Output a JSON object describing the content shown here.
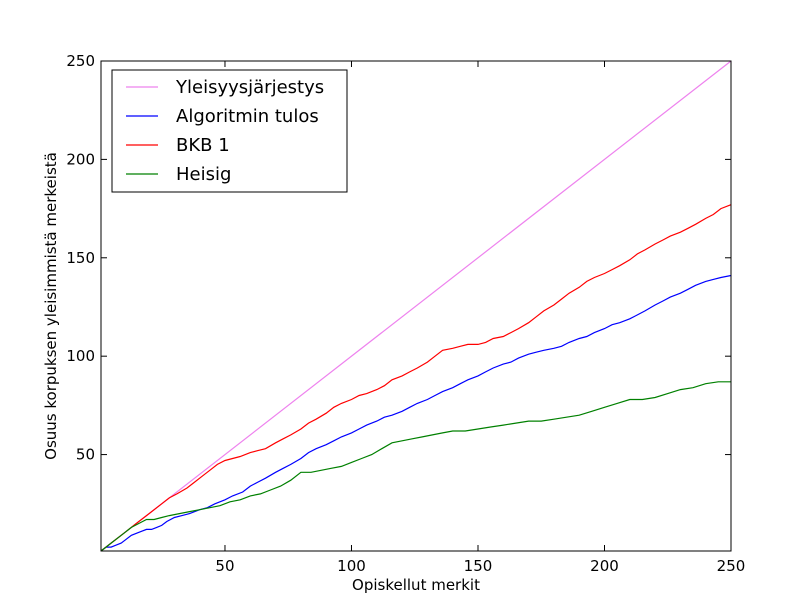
{
  "chart_data": {
    "type": "line",
    "title": "",
    "xlabel": "Opiskellut merkit",
    "ylabel": "Osuus korpuksen yleisimmistä merkeistä",
    "xlim": [
      1,
      250
    ],
    "ylim": [
      1,
      250
    ],
    "xticks": [
      50,
      100,
      150,
      200,
      250
    ],
    "yticks": [
      50,
      100,
      150,
      200,
      250
    ],
    "grid": false,
    "legend": "top-left",
    "series": [
      {
        "name": "Yleisyysjärjestys",
        "color": "#ee82ee",
        "points": [
          [
            1,
            1
          ],
          [
            250,
            250
          ]
        ]
      },
      {
        "name": "Algoritmin tulos",
        "color": "#0000ff",
        "points": [
          [
            1,
            1
          ],
          [
            3,
            3
          ],
          [
            5,
            3
          ],
          [
            7,
            4
          ],
          [
            9,
            5
          ],
          [
            11,
            7
          ],
          [
            13,
            9
          ],
          [
            15,
            10
          ],
          [
            17,
            11
          ],
          [
            19,
            12
          ],
          [
            21,
            12
          ],
          [
            23,
            13
          ],
          [
            25,
            14
          ],
          [
            27,
            16
          ],
          [
            30,
            18
          ],
          [
            33,
            19
          ],
          [
            36,
            20
          ],
          [
            40,
            22
          ],
          [
            43,
            23
          ],
          [
            46,
            25
          ],
          [
            50,
            27
          ],
          [
            53,
            29
          ],
          [
            57,
            31
          ],
          [
            60,
            34
          ],
          [
            63,
            36
          ],
          [
            66,
            38
          ],
          [
            70,
            41
          ],
          [
            73,
            43
          ],
          [
            76,
            45
          ],
          [
            80,
            48
          ],
          [
            83,
            51
          ],
          [
            86,
            53
          ],
          [
            90,
            55
          ],
          [
            93,
            57
          ],
          [
            96,
            59
          ],
          [
            100,
            61
          ],
          [
            103,
            63
          ],
          [
            106,
            65
          ],
          [
            110,
            67
          ],
          [
            113,
            69
          ],
          [
            116,
            70
          ],
          [
            120,
            72
          ],
          [
            123,
            74
          ],
          [
            126,
            76
          ],
          [
            130,
            78
          ],
          [
            133,
            80
          ],
          [
            136,
            82
          ],
          [
            140,
            84
          ],
          [
            143,
            86
          ],
          [
            146,
            88
          ],
          [
            150,
            90
          ],
          [
            153,
            92
          ],
          [
            156,
            94
          ],
          [
            160,
            96
          ],
          [
            163,
            97
          ],
          [
            166,
            99
          ],
          [
            170,
            101
          ],
          [
            173,
            102
          ],
          [
            176,
            103
          ],
          [
            180,
            104
          ],
          [
            183,
            105
          ],
          [
            186,
            107
          ],
          [
            190,
            109
          ],
          [
            193,
            110
          ],
          [
            196,
            112
          ],
          [
            200,
            114
          ],
          [
            203,
            116
          ],
          [
            206,
            117
          ],
          [
            210,
            119
          ],
          [
            213,
            121
          ],
          [
            216,
            123
          ],
          [
            220,
            126
          ],
          [
            223,
            128
          ],
          [
            226,
            130
          ],
          [
            230,
            132
          ],
          [
            233,
            134
          ],
          [
            236,
            136
          ],
          [
            240,
            138
          ],
          [
            243,
            139
          ],
          [
            246,
            140
          ],
          [
            250,
            141
          ]
        ]
      },
      {
        "name": "BKB 1",
        "color": "#ff0000",
        "points": [
          [
            1,
            1
          ],
          [
            5,
            5
          ],
          [
            10,
            10
          ],
          [
            15,
            15
          ],
          [
            20,
            20
          ],
          [
            25,
            25
          ],
          [
            28,
            28
          ],
          [
            31,
            30
          ],
          [
            35,
            33
          ],
          [
            38,
            36
          ],
          [
            41,
            39
          ],
          [
            44,
            42
          ],
          [
            47,
            45
          ],
          [
            50,
            47
          ],
          [
            53,
            48
          ],
          [
            56,
            49
          ],
          [
            60,
            51
          ],
          [
            63,
            52
          ],
          [
            66,
            53
          ],
          [
            70,
            56
          ],
          [
            73,
            58
          ],
          [
            76,
            60
          ],
          [
            80,
            63
          ],
          [
            83,
            66
          ],
          [
            86,
            68
          ],
          [
            90,
            71
          ],
          [
            93,
            74
          ],
          [
            96,
            76
          ],
          [
            100,
            78
          ],
          [
            103,
            80
          ],
          [
            106,
            81
          ],
          [
            110,
            83
          ],
          [
            113,
            85
          ],
          [
            116,
            88
          ],
          [
            120,
            90
          ],
          [
            123,
            92
          ],
          [
            126,
            94
          ],
          [
            130,
            97
          ],
          [
            133,
            100
          ],
          [
            136,
            103
          ],
          [
            140,
            104
          ],
          [
            143,
            105
          ],
          [
            146,
            106
          ],
          [
            150,
            106
          ],
          [
            153,
            107
          ],
          [
            156,
            109
          ],
          [
            160,
            110
          ],
          [
            163,
            112
          ],
          [
            166,
            114
          ],
          [
            170,
            117
          ],
          [
            173,
            120
          ],
          [
            176,
            123
          ],
          [
            180,
            126
          ],
          [
            183,
            129
          ],
          [
            186,
            132
          ],
          [
            190,
            135
          ],
          [
            193,
            138
          ],
          [
            196,
            140
          ],
          [
            200,
            142
          ],
          [
            203,
            144
          ],
          [
            206,
            146
          ],
          [
            210,
            149
          ],
          [
            213,
            152
          ],
          [
            216,
            154
          ],
          [
            220,
            157
          ],
          [
            223,
            159
          ],
          [
            226,
            161
          ],
          [
            230,
            163
          ],
          [
            233,
            165
          ],
          [
            236,
            167
          ],
          [
            240,
            170
          ],
          [
            243,
            172
          ],
          [
            246,
            175
          ],
          [
            250,
            177
          ]
        ]
      },
      {
        "name": "Heisig",
        "color": "#008000",
        "points": [
          [
            1,
            1
          ],
          [
            5,
            5
          ],
          [
            10,
            10
          ],
          [
            13,
            13
          ],
          [
            16,
            15
          ],
          [
            19,
            17
          ],
          [
            22,
            17
          ],
          [
            25,
            18
          ],
          [
            28,
            19
          ],
          [
            32,
            20
          ],
          [
            36,
            21
          ],
          [
            40,
            22
          ],
          [
            44,
            23
          ],
          [
            48,
            24
          ],
          [
            52,
            26
          ],
          [
            56,
            27
          ],
          [
            60,
            29
          ],
          [
            64,
            30
          ],
          [
            68,
            32
          ],
          [
            72,
            34
          ],
          [
            76,
            37
          ],
          [
            80,
            41
          ],
          [
            84,
            41
          ],
          [
            88,
            42
          ],
          [
            92,
            43
          ],
          [
            96,
            44
          ],
          [
            100,
            46
          ],
          [
            104,
            48
          ],
          [
            108,
            50
          ],
          [
            112,
            53
          ],
          [
            116,
            56
          ],
          [
            120,
            57
          ],
          [
            124,
            58
          ],
          [
            128,
            59
          ],
          [
            132,
            60
          ],
          [
            136,
            61
          ],
          [
            140,
            62
          ],
          [
            145,
            62
          ],
          [
            150,
            63
          ],
          [
            155,
            64
          ],
          [
            160,
            65
          ],
          [
            165,
            66
          ],
          [
            170,
            67
          ],
          [
            175,
            67
          ],
          [
            180,
            68
          ],
          [
            185,
            69
          ],
          [
            190,
            70
          ],
          [
            195,
            72
          ],
          [
            200,
            74
          ],
          [
            205,
            76
          ],
          [
            210,
            78
          ],
          [
            215,
            78
          ],
          [
            220,
            79
          ],
          [
            225,
            81
          ],
          [
            230,
            83
          ],
          [
            235,
            84
          ],
          [
            240,
            86
          ],
          [
            245,
            87
          ],
          [
            250,
            87
          ]
        ]
      }
    ]
  }
}
